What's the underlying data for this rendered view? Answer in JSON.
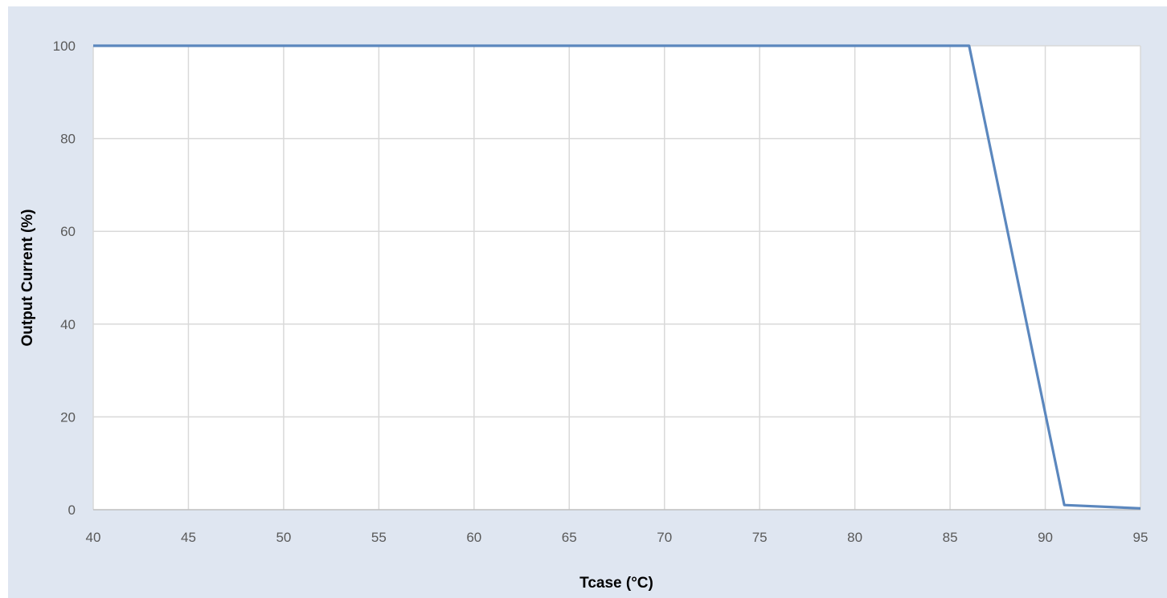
{
  "chart_data": {
    "type": "line",
    "title": "",
    "xlabel": "Tcase (°C)",
    "ylabel": "Output Current (%)",
    "xlim": [
      40,
      95
    ],
    "ylim": [
      0,
      100
    ],
    "xticks": [
      40,
      45,
      50,
      55,
      60,
      65,
      70,
      75,
      80,
      85,
      90,
      95
    ],
    "yticks": [
      0,
      20,
      40,
      60,
      80,
      100
    ],
    "xtick_labels": [
      "40",
      "45",
      "50",
      "55",
      "60",
      "65",
      "70",
      "75",
      "80",
      "85",
      "90",
      "95"
    ],
    "ytick_labels": [
      "0",
      "20",
      "40",
      "60",
      "80",
      "100"
    ],
    "grid": true,
    "legend": "none",
    "series": [
      {
        "color": "#5b87be",
        "points": [
          {
            "x": 40,
            "y": 100
          },
          {
            "x": 86,
            "y": 100
          },
          {
            "x": 91,
            "y": 1
          },
          {
            "x": 95,
            "y": 0.3
          }
        ]
      }
    ],
    "colors": {
      "background": "#dfe6f1",
      "plot_area": "#ffffff",
      "grid": "#d9d9d9",
      "line": "#5b87be"
    }
  }
}
